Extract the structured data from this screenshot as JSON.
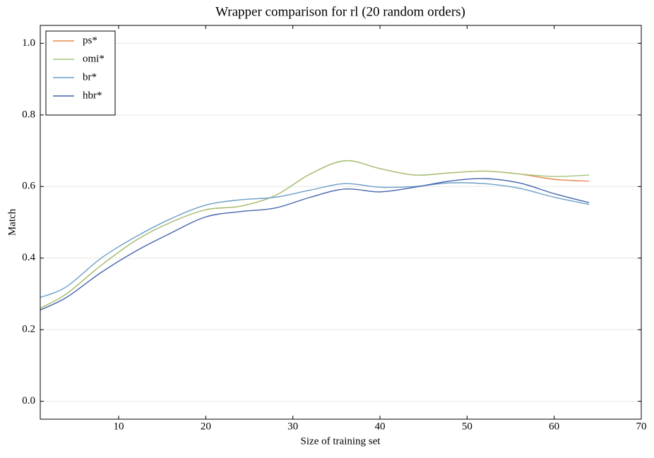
{
  "chart_data": {
    "type": "line",
    "title": "Wrapper comparison for rl (20 random orders)",
    "xlabel": "Size of training set",
    "ylabel": "Match",
    "x": [
      1,
      4,
      8,
      12,
      16,
      20,
      24,
      28,
      32,
      36,
      40,
      44,
      48,
      52,
      56,
      60,
      64
    ],
    "series": [
      {
        "name": "ps*",
        "color": "#e8894f",
        "values": [
          0.26,
          0.3,
          0.38,
          0.45,
          0.5,
          0.535,
          0.545,
          0.575,
          0.635,
          0.672,
          0.65,
          0.632,
          0.638,
          0.643,
          0.635,
          0.62,
          0.615
        ]
      },
      {
        "name": "omi*",
        "color": "#a3c57a",
        "values": [
          0.26,
          0.3,
          0.38,
          0.45,
          0.5,
          0.535,
          0.545,
          0.575,
          0.635,
          0.672,
          0.65,
          0.632,
          0.638,
          0.643,
          0.635,
          0.628,
          0.632
        ]
      },
      {
        "name": "br*",
        "color": "#6a9ec8",
        "values": [
          0.29,
          0.32,
          0.4,
          0.46,
          0.51,
          0.548,
          0.563,
          0.57,
          0.59,
          0.608,
          0.598,
          0.6,
          0.61,
          0.608,
          0.595,
          0.57,
          0.55
        ]
      },
      {
        "name": "hbr*",
        "color": "#4464ad",
        "values": [
          0.255,
          0.29,
          0.36,
          0.42,
          0.47,
          0.515,
          0.53,
          0.54,
          0.57,
          0.593,
          0.585,
          0.598,
          0.615,
          0.622,
          0.61,
          0.58,
          0.555
        ]
      }
    ],
    "xlim": [
      1,
      70
    ],
    "xticks": [
      10,
      20,
      30,
      40,
      50,
      60,
      70
    ],
    "ylim": [
      -0.05,
      1.05
    ],
    "yticks": [
      {
        "value": 0,
        "label": "0.0"
      },
      0.2,
      0.4,
      0.6,
      0.8,
      {
        "value": 1,
        "label": "1.0"
      }
    ],
    "grid": true,
    "legend": "upper-left"
  }
}
